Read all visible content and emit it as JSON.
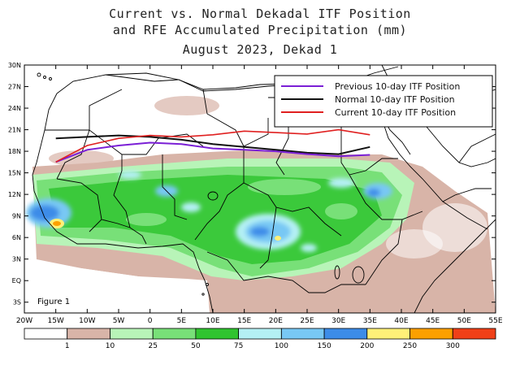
{
  "title": {
    "line1": "Current vs. Normal Dekadal ITF Position",
    "line2": "and RFE Accumulated Precipitation (mm)",
    "line3": "August 2023, Dekad 1"
  },
  "map": {
    "lon_range": [
      -20,
      55
    ],
    "lat_range": [
      0,
      30
    ],
    "x_ticks": [
      "20W",
      "15W",
      "10W",
      "5W",
      "0",
      "5E",
      "10E",
      "15E",
      "20E",
      "25E",
      "30E",
      "35E",
      "40E",
      "45E",
      "50E",
      "55E"
    ],
    "y_ticks": [
      "3S",
      "EQ",
      "3N",
      "6N",
      "9N",
      "12N",
      "15N",
      "18N",
      "21N",
      "24N",
      "27N",
      "30N"
    ],
    "figure_label": "Figure 1"
  },
  "legend": {
    "entries": [
      {
        "label": "Previous 10-day ITF Position",
        "color": "#7b1fd6"
      },
      {
        "label": "Normal 10-day ITF Position",
        "color": "#111111"
      },
      {
        "label": "Current 10-day ITF Position",
        "color": "#e02020"
      }
    ]
  },
  "itf_lines": {
    "previous": [
      [
        -15,
        16.5
      ],
      [
        -10,
        18.2
      ],
      [
        -5,
        18.8
      ],
      [
        0,
        19.2
      ],
      [
        5,
        19.0
      ],
      [
        10,
        18.4
      ],
      [
        15,
        18.2
      ],
      [
        20,
        18.0
      ],
      [
        25,
        17.6
      ],
      [
        30,
        17.3
      ],
      [
        35,
        17.5
      ]
    ],
    "normal": [
      [
        -15,
        19.8
      ],
      [
        -10,
        20.0
      ],
      [
        -5,
        20.2
      ],
      [
        0,
        20.0
      ],
      [
        5,
        19.6
      ],
      [
        10,
        19.0
      ],
      [
        15,
        18.6
      ],
      [
        20,
        18.2
      ],
      [
        25,
        17.8
      ],
      [
        30,
        17.6
      ],
      [
        35,
        18.6
      ]
    ],
    "current": [
      [
        -15,
        16.5
      ],
      [
        -10,
        18.8
      ],
      [
        -5,
        19.8
      ],
      [
        0,
        20.2
      ],
      [
        5,
        20.0
      ],
      [
        10,
        20.3
      ],
      [
        15,
        20.8
      ],
      [
        20,
        20.6
      ],
      [
        25,
        20.4
      ],
      [
        30,
        21.0
      ],
      [
        35,
        20.3
      ]
    ]
  },
  "colorbar": {
    "colors": [
      "#ffffff",
      "#d8b4a8",
      "#b8f4b8",
      "#78e078",
      "#30c430",
      "#b4f0f4",
      "#78c8f4",
      "#3c8ce8",
      "#fff078",
      "#fca000",
      "#f04018"
    ],
    "labels": [
      "1",
      "10",
      "25",
      "50",
      "75",
      "100",
      "150",
      "200",
      "250",
      "300"
    ]
  }
}
